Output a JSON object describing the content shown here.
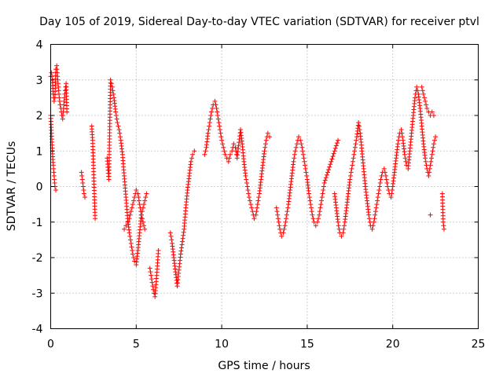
{
  "chart_data": {
    "type": "scatter",
    "title": "Day 105 of 2019, Sidereal Day-to-day VTEC variation (SDTVAR) for receiver ptvl",
    "xlabel": "GPS time / hours",
    "ylabel": "SDTVAR / TECUs",
    "xlim": [
      0,
      25
    ],
    "ylim": [
      -4,
      4
    ],
    "xticks": [
      "0",
      "5",
      "10",
      "15",
      "20",
      "25"
    ],
    "yticks": [
      "-4",
      "-3",
      "-2",
      "-1",
      "0",
      "1",
      "2",
      "3",
      "4"
    ],
    "grid": true,
    "marker": "+",
    "color": "#ff0000",
    "series": [
      {
        "name": "SDTVAR",
        "x": [
          0.0,
          0.05,
          0.1,
          0.15,
          0.2,
          0.25,
          0.3,
          0.35,
          0.4,
          0.45,
          0.5,
          0.55,
          0.6,
          0.65,
          0.7,
          0.75,
          0.8,
          0.85,
          0.9,
          0.95,
          0.0,
          0.05,
          0.1,
          0.15,
          0.2,
          0.25,
          0.3,
          1.8,
          1.85,
          1.9,
          1.95,
          2.0,
          2.4,
          2.45,
          2.5,
          2.55,
          2.6,
          3.3,
          3.4,
          3.5,
          3.6,
          3.7,
          3.8,
          3.9,
          4.0,
          4.1,
          4.2,
          4.3,
          4.4,
          4.5,
          4.6,
          4.7,
          4.8,
          4.9,
          5.0,
          5.1,
          5.2,
          5.3,
          5.4,
          5.5,
          5.6,
          4.3,
          4.4,
          4.5,
          4.6,
          4.7,
          4.8,
          4.9,
          5.0,
          5.1,
          5.2,
          5.3,
          5.4,
          5.5,
          5.8,
          5.9,
          6.0,
          6.1,
          6.2,
          6.3,
          7.0,
          7.1,
          7.2,
          7.3,
          7.4,
          7.6,
          7.8,
          7.9,
          8.0,
          8.1,
          8.2,
          8.3,
          8.4,
          9.0,
          9.1,
          9.2,
          9.3,
          9.4,
          9.5,
          9.6,
          9.7,
          9.8,
          9.9,
          10.0,
          10.1,
          10.2,
          10.3,
          10.4,
          10.5,
          10.6,
          10.7,
          10.8,
          10.9,
          11.1,
          11.2,
          11.3,
          11.4,
          11.5,
          11.6,
          11.7,
          11.8,
          11.9,
          12.0,
          12.1,
          12.2,
          12.3,
          12.4,
          12.5,
          12.6,
          12.7,
          12.8,
          13.2,
          13.3,
          13.4,
          13.5,
          13.6,
          13.7,
          13.8,
          13.9,
          14.0,
          14.1,
          14.2,
          14.3,
          14.4,
          14.5,
          14.6,
          14.7,
          14.8,
          14.9,
          15.0,
          15.1,
          15.2,
          15.3,
          15.4,
          15.5,
          15.6,
          15.7,
          15.8,
          15.9,
          16.0,
          16.2,
          16.4,
          16.6,
          16.8,
          16.6,
          16.7,
          16.8,
          16.9,
          17.0,
          17.1,
          17.2,
          17.3,
          17.4,
          17.5,
          17.6,
          17.7,
          17.8,
          17.9,
          18.0,
          18.1,
          18.2,
          18.3,
          18.4,
          18.5,
          18.6,
          18.7,
          18.8,
          18.9,
          19.0,
          19.1,
          19.2,
          19.3,
          19.4,
          19.5,
          19.6,
          19.7,
          19.8,
          19.9,
          20.0,
          20.1,
          20.2,
          20.3,
          20.4,
          20.5,
          20.6,
          20.7,
          20.8,
          20.9,
          21.0,
          21.1,
          21.2,
          21.3,
          21.4,
          21.5,
          21.6,
          21.7,
          21.8,
          21.9,
          22.0,
          22.1,
          22.2,
          22.3,
          22.4,
          22.5,
          21.7,
          21.8,
          21.9,
          22.0,
          22.1,
          22.2,
          22.3,
          22.4,
          22.2,
          22.9,
          22.95,
          23.0
        ],
        "y": [
          3.1,
          3.2,
          3.0,
          2.6,
          2.4,
          2.5,
          3.3,
          3.4,
          3.1,
          2.8,
          2.5,
          2.3,
          2.2,
          2.0,
          1.9,
          2.2,
          2.5,
          2.7,
          2.9,
          2.1,
          2.0,
          1.5,
          1.0,
          0.6,
          0.3,
          0.0,
          -0.1,
          0.4,
          0.2,
          0.0,
          -0.2,
          -0.3,
          1.7,
          1.3,
          0.6,
          -0.2,
          -0.9,
          0.8,
          0.2,
          3.0,
          2.8,
          2.5,
          2.1,
          1.8,
          1.6,
          1.3,
          0.9,
          0.3,
          -0.3,
          -0.9,
          -1.3,
          -1.6,
          -1.9,
          -2.1,
          -2.2,
          -1.8,
          -1.3,
          -0.8,
          -0.6,
          -0.4,
          -0.2,
          -1.2,
          -1.1,
          -1.0,
          -0.9,
          -0.7,
          -0.5,
          -0.3,
          -0.1,
          -0.2,
          -0.5,
          -0.8,
          -1.0,
          -1.2,
          -2.3,
          -2.6,
          -2.9,
          -3.1,
          -2.5,
          -1.8,
          -1.3,
          -1.6,
          -2.0,
          -2.4,
          -2.8,
          -1.9,
          -1.2,
          -0.6,
          -0.1,
          0.3,
          0.7,
          0.9,
          1.0,
          0.9,
          1.1,
          1.5,
          1.8,
          2.1,
          2.3,
          2.4,
          2.2,
          1.9,
          1.6,
          1.3,
          1.1,
          0.9,
          0.8,
          0.7,
          0.9,
          1.0,
          1.2,
          1.1,
          0.8,
          1.6,
          1.2,
          0.7,
          0.3,
          0.0,
          -0.3,
          -0.5,
          -0.7,
          -0.9,
          -0.8,
          -0.5,
          -0.2,
          0.2,
          0.6,
          1.0,
          1.3,
          1.5,
          1.4,
          -0.6,
          -0.9,
          -1.2,
          -1.4,
          -1.3,
          -1.1,
          -0.8,
          -0.5,
          -0.1,
          0.3,
          0.7,
          1.0,
          1.2,
          1.4,
          1.3,
          1.1,
          0.8,
          0.5,
          0.2,
          -0.2,
          -0.5,
          -0.8,
          -1.0,
          -1.1,
          -1.0,
          -0.8,
          -0.5,
          -0.2,
          0.1,
          0.4,
          0.7,
          1.0,
          1.3,
          -0.2,
          -0.6,
          -1.0,
          -1.3,
          -1.4,
          -1.3,
          -1.0,
          -0.6,
          -0.2,
          0.2,
          0.5,
          0.8,
          1.1,
          1.4,
          1.8,
          1.5,
          1.0,
          0.5,
          0.0,
          -0.4,
          -0.8,
          -1.1,
          -1.2,
          -1.0,
          -0.7,
          -0.4,
          -0.1,
          0.2,
          0.4,
          0.5,
          0.3,
          0.0,
          -0.2,
          -0.3,
          0.0,
          0.4,
          0.8,
          1.2,
          1.5,
          1.6,
          1.3,
          0.9,
          0.6,
          0.5,
          1.0,
          1.5,
          2.0,
          2.5,
          2.8,
          2.6,
          2.2,
          1.7,
          1.2,
          0.8,
          0.5,
          0.3,
          0.6,
          0.9,
          1.2,
          1.4,
          2.8,
          2.6,
          2.4,
          2.2,
          2.1,
          2.0,
          2.1,
          2.0,
          -0.8,
          -0.2,
          -1.0,
          -1.2
        ]
      }
    ]
  }
}
